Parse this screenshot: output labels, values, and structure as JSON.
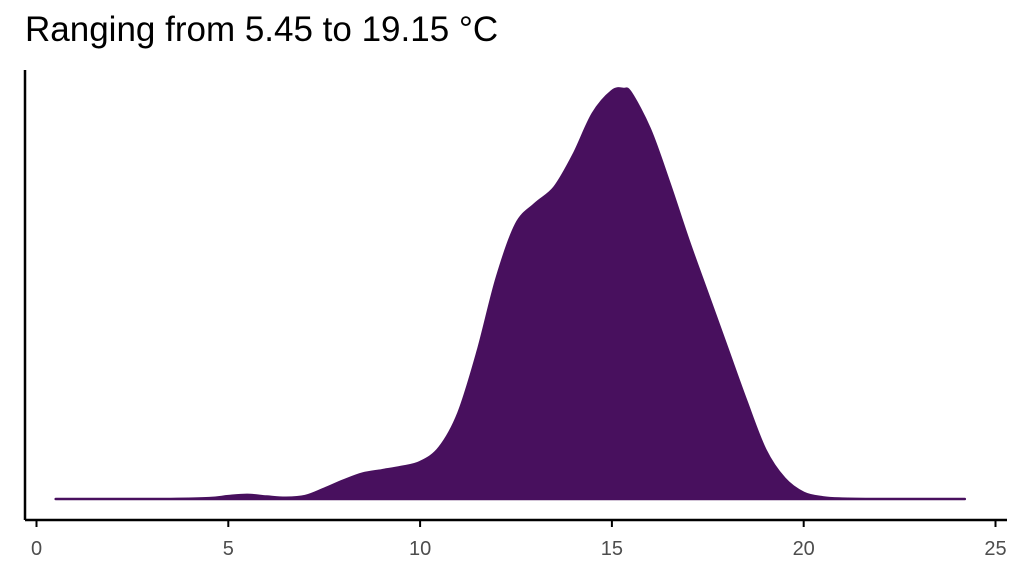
{
  "chart_data": {
    "type": "area",
    "title": "Ranging from 5.45 to 19.15 °C",
    "xlabel": "",
    "ylabel": "",
    "xlim": [
      -0.3,
      25.3
    ],
    "x_ticks": [
      0,
      5,
      10,
      15,
      20,
      25
    ],
    "x_tick_labels": [
      "0",
      "5",
      "10",
      "15",
      "20",
      "25"
    ],
    "y_ticks_shown": false,
    "grid": false,
    "legend": "none",
    "fill_color": "#48105e",
    "axis_color": "#000000",
    "tick_label_color": "#4d4d4d",
    "series": [
      {
        "x": [
          0.5,
          2.0,
          3.5,
          4.5,
          5.0,
          5.5,
          6.0,
          6.5,
          7.0,
          7.5,
          8.0,
          8.5,
          9.0,
          9.5,
          10.0,
          10.5,
          11.0,
          11.5,
          12.0,
          12.5,
          13.0,
          13.5,
          14.0,
          14.5,
          15.0,
          15.3,
          15.5,
          16.0,
          16.5,
          17.0,
          17.5,
          18.0,
          18.5,
          19.0,
          19.5,
          20.0,
          20.5,
          21.0,
          22.0,
          23.0,
          24.2
        ],
        "y": [
          0.0,
          0.0,
          0.0,
          0.002,
          0.007,
          0.01,
          0.006,
          0.003,
          0.007,
          0.025,
          0.045,
          0.062,
          0.07,
          0.078,
          0.09,
          0.125,
          0.21,
          0.36,
          0.54,
          0.67,
          0.72,
          0.76,
          0.84,
          0.94,
          0.995,
          1.0,
          0.99,
          0.9,
          0.77,
          0.63,
          0.5,
          0.37,
          0.24,
          0.12,
          0.05,
          0.015,
          0.004,
          0.001,
          0.0,
          0.0,
          0.0
        ]
      }
    ]
  }
}
